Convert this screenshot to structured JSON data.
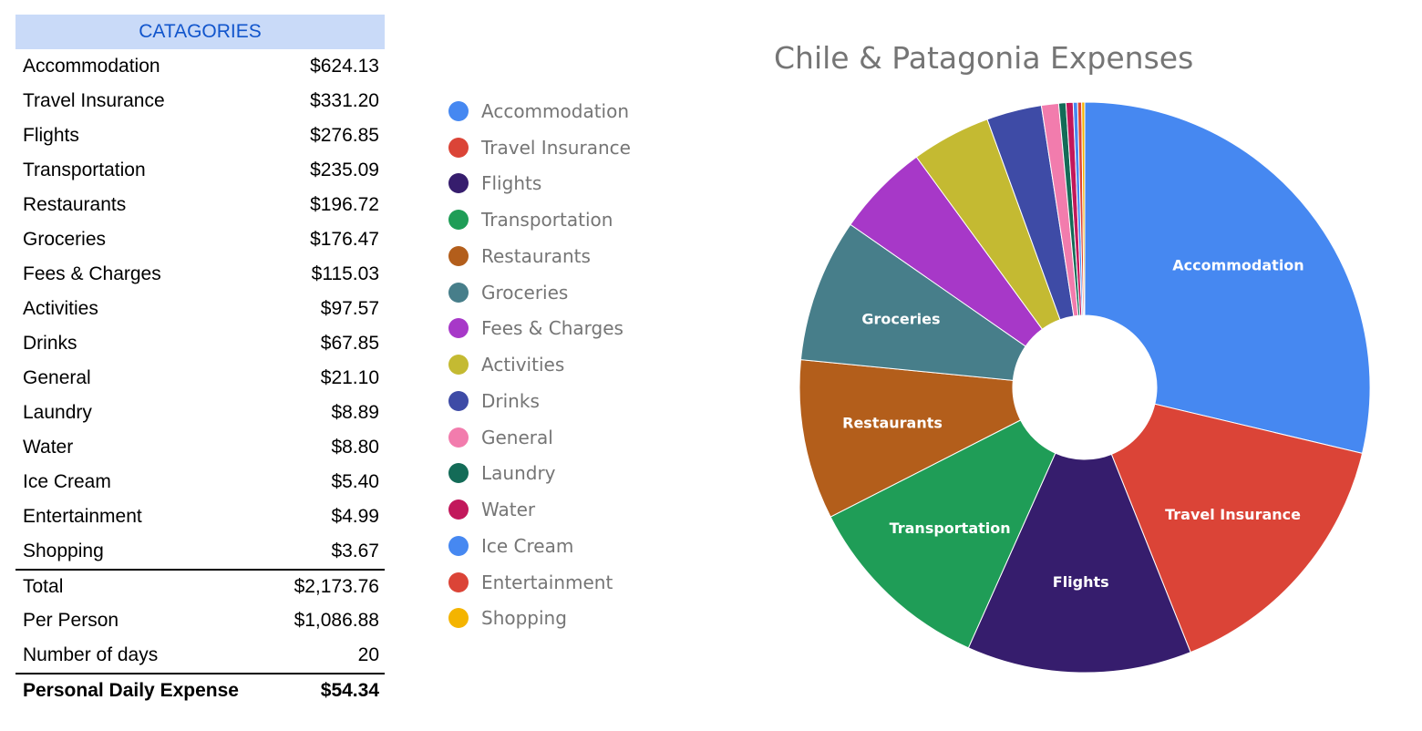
{
  "table": {
    "header": "CATAGORIES",
    "rows": [
      {
        "label": "Accommodation",
        "value": "$624.13"
      },
      {
        "label": "Travel Insurance",
        "value": "$331.20"
      },
      {
        "label": "Flights",
        "value": "$276.85"
      },
      {
        "label": "Transportation",
        "value": "$235.09"
      },
      {
        "label": "Restaurants",
        "value": "$196.72"
      },
      {
        "label": "Groceries",
        "value": "$176.47"
      },
      {
        "label": "Fees & Charges",
        "value": "$115.03"
      },
      {
        "label": "Activities",
        "value": "$97.57"
      },
      {
        "label": "Drinks",
        "value": "$67.85"
      },
      {
        "label": "General",
        "value": "$21.10"
      },
      {
        "label": "Laundry",
        "value": "$8.89"
      },
      {
        "label": "Water",
        "value": "$8.80"
      },
      {
        "label": "Ice Cream",
        "value": "$5.40"
      },
      {
        "label": "Entertainment",
        "value": "$4.99"
      },
      {
        "label": "Shopping",
        "value": "$3.67"
      }
    ],
    "summary": [
      {
        "label": "Total",
        "value": "$2,173.76"
      },
      {
        "label": "Per Person",
        "value": "$1,086.88"
      },
      {
        "label": "Number of days",
        "value": "20"
      }
    ],
    "final": {
      "label": "Personal Daily Expense",
      "value": "$54.34"
    }
  },
  "chart_data": {
    "type": "pie",
    "donut": true,
    "title": "Chile & Patagonia Expenses",
    "legend_position": "left",
    "categories": [
      "Accommodation",
      "Travel Insurance",
      "Flights",
      "Transportation",
      "Restaurants",
      "Groceries",
      "Fees & Charges",
      "Activities",
      "Drinks",
      "General",
      "Laundry",
      "Water",
      "Ice Cream",
      "Entertainment",
      "Shopping"
    ],
    "values": [
      624.13,
      331.2,
      276.85,
      235.09,
      196.72,
      176.47,
      115.03,
      97.57,
      67.85,
      21.1,
      8.89,
      8.8,
      5.4,
      4.99,
      3.67
    ],
    "colors": [
      "#4688f1",
      "#db4437",
      "#361d6d",
      "#1f9d57",
      "#b35e1b",
      "#477e8a",
      "#a738c8",
      "#c4ba32",
      "#3e4ba6",
      "#f27cad",
      "#136b57",
      "#c2185b",
      "#4688f1",
      "#db4437",
      "#f4b400"
    ],
    "slice_labels": [
      "Accommodation",
      "Travel Insurance",
      "Flights",
      "Transportation",
      "Restaurants",
      "Groceries",
      "",
      "",
      "",
      "",
      "",
      "",
      "",
      "",
      ""
    ]
  }
}
